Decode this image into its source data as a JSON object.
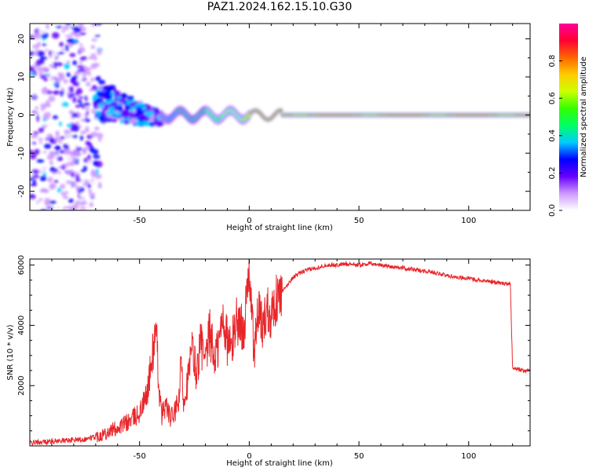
{
  "figure_title": "PAZ1.2024.162.15.10.G30",
  "colors": {
    "snr_line": "#e8262a",
    "axes": "#000000"
  },
  "chart_data": [
    {
      "type": "heatmap",
      "title": "",
      "xlabel": "Height of straight line (km)",
      "ylabel": "Frequency (Hz)",
      "xlim": [
        -100,
        128
      ],
      "ylim": [
        -25,
        24
      ],
      "xticks": [
        -50,
        0,
        50,
        100
      ],
      "yticks": [
        -20,
        -10,
        0,
        10,
        20
      ],
      "grid": false,
      "description_points": [
        {
          "x": -90,
          "y": 15
        },
        {
          "x": -85,
          "y": -12
        },
        {
          "x": -80,
          "y": 5
        },
        {
          "x": -62,
          "y": 5
        },
        {
          "x": -55,
          "y": 3
        },
        {
          "x": -45,
          "y": -2
        },
        {
          "x": -40,
          "y": 0
        },
        {
          "x": -30,
          "y": -1
        },
        {
          "x": -20,
          "y": 0.5
        },
        {
          "x": -10,
          "y": 0
        },
        {
          "x": 0,
          "y": 0
        },
        {
          "x": 10,
          "y": 0.3
        },
        {
          "x": 30,
          "y": 0
        },
        {
          "x": 60,
          "y": 0
        },
        {
          "x": 100,
          "y": 0
        },
        {
          "x": 128,
          "y": 0
        }
      ],
      "colorbar": {
        "label": "Normalized spectral amplitude",
        "range": [
          0.0,
          1.0
        ],
        "ticks": [
          "0.0",
          "0.2",
          "0.4",
          "0.6",
          "0.8"
        ],
        "tick_values": [
          0.0,
          0.2,
          0.4,
          0.6,
          0.8
        ],
        "colormap": [
          "#ffffff",
          "#cc99ff",
          "#6600ff",
          "#0000ff",
          "#00ccff",
          "#00ff66",
          "#33ff00",
          "#ccff00",
          "#ffcc00",
          "#ff6600",
          "#ff0033",
          "#ff0099"
        ]
      }
    },
    {
      "type": "line",
      "title": "",
      "xlabel": "Height of straight line (km)",
      "ylabel": "SNR (10 * v/v)",
      "xlim": [
        -100,
        128
      ],
      "ylim": [
        0,
        6200
      ],
      "xticks": [
        -50,
        0,
        50,
        100
      ],
      "yticks": [
        2000,
        4000,
        6000
      ],
      "grid": false,
      "series": [
        {
          "x": [
            -100,
            -90,
            -80,
            -75,
            -70,
            -65,
            -60,
            -55,
            -50,
            -47,
            -45,
            -43,
            -42,
            -41,
            -40,
            -38,
            -36,
            -34,
            -32,
            -31,
            -30,
            -28,
            -26,
            -24,
            -22,
            -20,
            -18,
            -16,
            -14,
            -12,
            -10,
            -8,
            -6,
            -4,
            -2,
            0,
            2,
            3,
            4,
            6,
            8,
            10,
            12,
            14,
            16,
            18,
            20,
            25,
            30,
            35,
            40,
            45,
            50,
            55,
            60,
            65,
            70,
            75,
            80,
            85,
            90,
            95,
            100,
            105,
            110,
            115,
            119,
            120,
            122,
            125,
            128
          ],
          "y": [
            100,
            150,
            200,
            220,
            300,
            450,
            600,
            800,
            1100,
            1600,
            2500,
            3700,
            3200,
            1800,
            1000,
            1400,
            900,
            1100,
            1500,
            2800,
            1500,
            2200,
            3200,
            2400,
            3500,
            2600,
            3800,
            2900,
            3300,
            4300,
            3500,
            3200,
            4300,
            3900,
            4100,
            6000,
            3200,
            3600,
            4500,
            3900,
            4600,
            4400,
            4800,
            5000,
            5200,
            5400,
            5600,
            5800,
            5900,
            6000,
            6000,
            6050,
            6000,
            6050,
            6000,
            5950,
            5900,
            5850,
            5800,
            5750,
            5650,
            5600,
            5550,
            5500,
            5450,
            5400,
            5350,
            2600,
            2550,
            2500,
            2500
          ]
        }
      ]
    }
  ]
}
